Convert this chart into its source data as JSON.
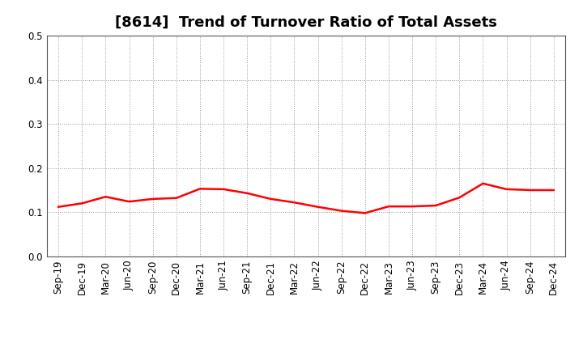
{
  "title": "[8614]  Trend of Turnover Ratio of Total Assets",
  "x_labels": [
    "Sep-19",
    "Dec-19",
    "Mar-20",
    "Jun-20",
    "Sep-20",
    "Dec-20",
    "Mar-21",
    "Jun-21",
    "Sep-21",
    "Dec-21",
    "Mar-22",
    "Jun-22",
    "Sep-22",
    "Dec-22",
    "Mar-23",
    "Jun-23",
    "Sep-23",
    "Dec-23",
    "Mar-24",
    "Jun-24",
    "Sep-24",
    "Dec-24"
  ],
  "values": [
    0.112,
    0.12,
    0.135,
    0.124,
    0.13,
    0.132,
    0.153,
    0.152,
    0.143,
    0.13,
    0.122,
    0.112,
    0.103,
    0.098,
    0.113,
    0.113,
    0.115,
    0.133,
    0.165,
    0.152,
    0.15,
    0.15
  ],
  "line_color": "#FF0000",
  "line_width": 1.8,
  "ylim": [
    0.0,
    0.5
  ],
  "yticks": [
    0.0,
    0.1,
    0.2,
    0.3,
    0.4,
    0.5
  ],
  "grid_color": "#999999",
  "background_color": "#ffffff",
  "title_fontsize": 13,
  "tick_fontsize": 8.5
}
